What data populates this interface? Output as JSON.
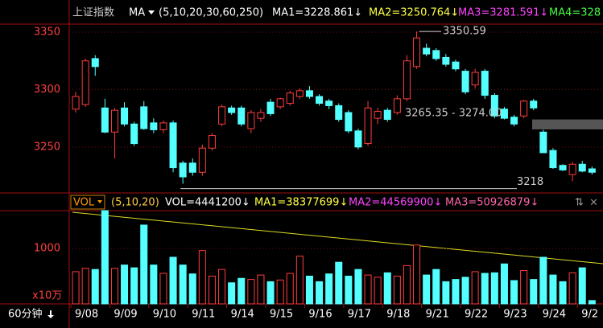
{
  "header": {
    "name": "上证指数",
    "indicator": "MA",
    "params": "(5,10,20,30,60,250)",
    "ma1": "MA1=3228.861↓",
    "ma2": "MA2=3250.764↓",
    "ma3": "MA3=3281.591↓",
    "ma4": "MA4=328"
  },
  "volume_header": {
    "indicator": "VOL",
    "params": "(5,10,20)",
    "vol": "VOL=4441200↓",
    "ma1": "MA1=38377699↓",
    "ma2": "MA2=44569900↓",
    "ma3": "MA3=50926879↓"
  },
  "period": "60分钟",
  "chart_data": [
    {
      "type": "candlestick",
      "up_color": "#ff3c3c",
      "down_color": "#54ffff",
      "categories": [
        "9/08",
        null,
        null,
        null,
        "9/09",
        null,
        null,
        null,
        "9/10",
        null,
        null,
        null,
        "9/11",
        null,
        null,
        null,
        "9/14",
        null,
        null,
        null,
        "9/15",
        null,
        null,
        null,
        "9/16",
        null,
        null,
        null,
        "9/17",
        null,
        null,
        null,
        "9/18",
        null,
        null,
        null,
        "9/21",
        null,
        null,
        null,
        "9/22",
        null,
        null,
        null,
        "9/23",
        null,
        null,
        null,
        "9/24",
        null,
        null,
        null,
        "9/2",
        null
      ],
      "open": [
        3283,
        3287,
        3327,
        3284,
        3263,
        3284,
        3270,
        3285,
        3271,
        3265,
        3271,
        3236,
        3236,
        3228,
        3249,
        3270,
        3284,
        3284,
        3266,
        3275,
        3289,
        3285,
        3288,
        3294,
        3299,
        3294,
        3290,
        3286,
        3280,
        3264,
        3253,
        3275,
        3282,
        3280,
        3292,
        3320,
        3336,
        3334,
        3328,
        3324,
        3316,
        3304,
        3316,
        3295,
        3283,
        3276,
        3277,
        3290,
        3263,
        3247,
        3234,
        3226,
        3235,
        3231
      ],
      "high": [
        3298,
        3327,
        3330,
        3292,
        3284,
        3289,
        3272,
        3290,
        3275,
        3273,
        3273,
        3238,
        3240,
        3252,
        3262,
        3287,
        3286,
        3286,
        3282,
        3283,
        3292,
        3293,
        3299,
        3301,
        3303,
        3296,
        3292,
        3288,
        3282,
        3266,
        3290,
        3284,
        3284,
        3295,
        3330,
        3350.59,
        3340,
        3336,
        3331,
        3326,
        3318,
        3318,
        3318,
        3297,
        3285,
        3278,
        3291,
        3292,
        3265,
        3249,
        3235,
        3237,
        3238,
        3233
      ],
      "low": [
        3280,
        3285,
        3312,
        3262,
        3240,
        3268,
        3251,
        3265,
        3262,
        3262,
        3228,
        3218,
        3225,
        3225,
        3247,
        3268,
        3278,
        3268,
        3262,
        3272,
        3277,
        3283,
        3286,
        3292,
        3292,
        3286,
        3283,
        3272,
        3262,
        3248,
        3251,
        3270,
        3272,
        3278,
        3290,
        3318,
        3329,
        3325,
        3320,
        3316,
        3296,
        3301,
        3292,
        3275,
        3274,
        3268,
        3275,
        3282,
        3245,
        3231,
        3229,
        3220.24,
        3228,
        3226
      ],
      "close": [
        3294,
        3325,
        3320,
        3263,
        3282,
        3270,
        3253,
        3266,
        3265,
        3271,
        3232,
        3224,
        3228,
        3249,
        3260,
        3285,
        3280,
        3270,
        3280,
        3280,
        3279,
        3292,
        3297,
        3299,
        3294,
        3288,
        3286,
        3274,
        3264,
        3250,
        3284,
        3281,
        3274,
        3292,
        3325,
        3345,
        3331,
        3327,
        3322,
        3318,
        3298,
        3315,
        3295,
        3277,
        3275,
        3270,
        3290,
        3284,
        3245,
        3232,
        3230,
        3235,
        3229,
        3228
      ],
      "ylim": [
        3210,
        3357
      ],
      "yticks": [
        3250,
        3300,
        3350
      ],
      "grid": true,
      "price_band": {
        "label": "3265.35 - 3274.00",
        "low": 3265.35,
        "high": 3274.0
      }
    },
    {
      "type": "bar",
      "unit_label": "x10万",
      "values": [
        580,
        640,
        620,
        1680,
        640,
        700,
        650,
        1420,
        700,
        550,
        840,
        700,
        540,
        960,
        500,
        620,
        380,
        460,
        440,
        520,
        400,
        430,
        550,
        860,
        500,
        400,
        540,
        750,
        500,
        620,
        520,
        480,
        560,
        500,
        690,
        1060,
        520,
        620,
        400,
        440,
        480,
        580,
        550,
        560,
        720,
        420,
        600,
        440,
        840,
        520,
        400,
        560,
        650,
        60
      ],
      "ylim": [
        0,
        1680
      ],
      "yticks": [
        1000
      ],
      "grid": true
    }
  ]
}
